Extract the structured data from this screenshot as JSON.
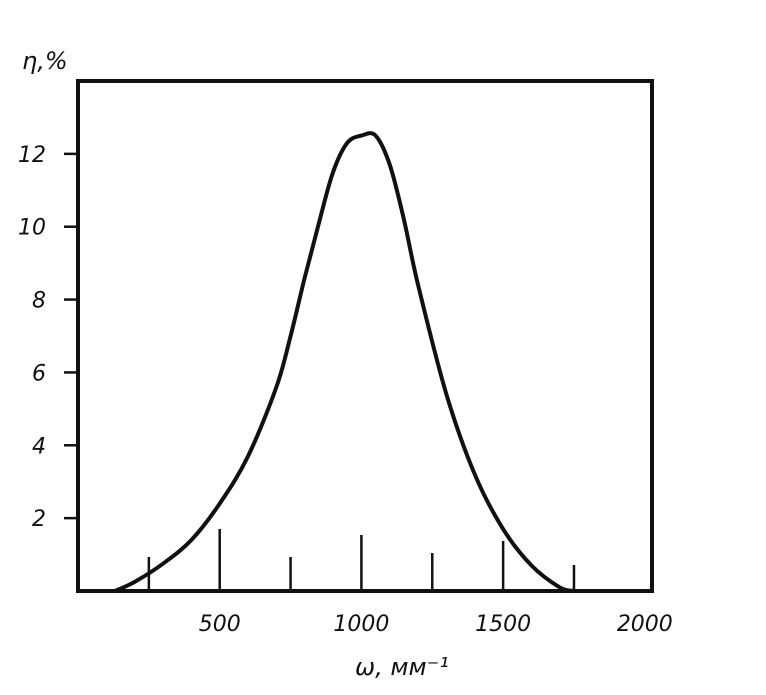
{
  "chart_data": {
    "type": "line",
    "xlabel": "ω, мм⁻¹",
    "ylabel": "η,%",
    "xlim": [
      0,
      2000
    ],
    "ylim": [
      0,
      14
    ],
    "x_ticks": [
      500,
      1000,
      1500,
      2000
    ],
    "x_tick_labels": [
      "500",
      "1000",
      "1500",
      "2000"
    ],
    "x_minor_ticks": [
      250,
      500,
      750,
      1000,
      1250,
      1500,
      1750
    ],
    "y_ticks": [
      2,
      4,
      6,
      8,
      10,
      12
    ],
    "y_tick_labels": [
      "2",
      "4",
      "6",
      "8",
      "10",
      "12"
    ],
    "grid": false,
    "series": [
      {
        "x": [
          130,
          200,
          300,
          400,
          500,
          600,
          700,
          750,
          800,
          850,
          900,
          950,
          1000,
          1050,
          1100,
          1150,
          1200,
          1300,
          1400,
          1500,
          1600,
          1700,
          1750
        ],
        "values": [
          0,
          0.25,
          0.75,
          1.4,
          2.4,
          3.7,
          5.6,
          7.0,
          8.6,
          10.1,
          11.5,
          12.3,
          12.5,
          12.5,
          11.7,
          10.2,
          8.4,
          5.4,
          3.2,
          1.7,
          0.7,
          0.1,
          0
        ]
      }
    ]
  }
}
